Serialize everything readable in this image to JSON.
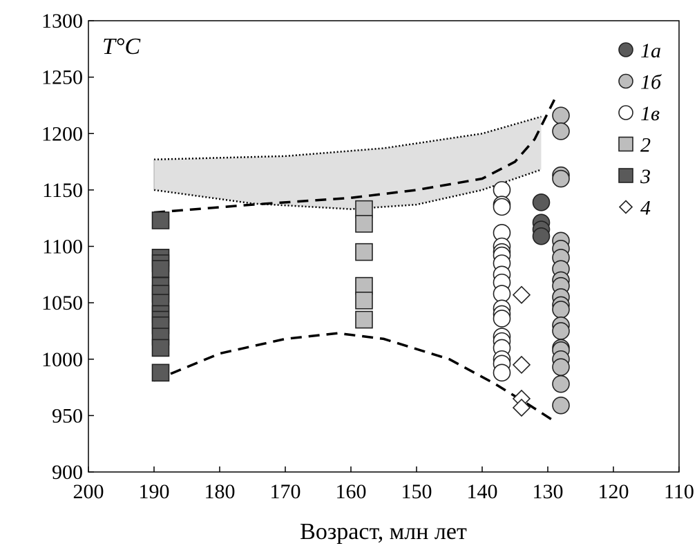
{
  "chart_data": {
    "type": "scatter",
    "title": "T°C",
    "xlabel": "Возраст, млн лет",
    "ylabel": "",
    "xlim": [
      200,
      110
    ],
    "ylim": [
      900,
      1300
    ],
    "xticks": [
      200,
      190,
      180,
      170,
      160,
      150,
      140,
      130,
      120,
      110
    ],
    "yticks": [
      900,
      950,
      1000,
      1050,
      1100,
      1150,
      1200,
      1250,
      1300
    ],
    "grid": false,
    "legend_position": "top-right",
    "series": [
      {
        "name": "1а",
        "marker": "circle",
        "color": "#5a5a5a",
        "x": 131,
        "y": [
          1139,
          1121,
          1115,
          1109
        ]
      },
      {
        "name": "1б",
        "marker": "circle",
        "color": "#bdbdbd",
        "x": 128,
        "y": [
          1216,
          1202,
          1163,
          1160,
          1105,
          1098,
          1090,
          1080,
          1070,
          1065,
          1055,
          1048,
          1044,
          1030,
          1025,
          1010,
          1008,
          1000,
          993,
          978,
          959
        ]
      },
      {
        "name": "1в",
        "marker": "circle",
        "color": "#ffffff",
        "x": 137,
        "y": [
          1150,
          1137,
          1135,
          1112,
          1100,
          1095,
          1092,
          1085,
          1075,
          1068,
          1058,
          1045,
          1040,
          1036,
          1020,
          1016,
          1010,
          1000,
          996,
          988
        ]
      },
      {
        "name": "2",
        "marker": "square",
        "color": "#bdbdbd",
        "x": 158,
        "y": [
          1133,
          1120,
          1095,
          1065,
          1052,
          1035
        ]
      },
      {
        "name": "3",
        "marker": "square",
        "color": "#5a5a5a",
        "x": 189,
        "y": [
          1123,
          1090,
          1085,
          1080,
          1065,
          1058,
          1050,
          1040,
          1035,
          1030,
          1020,
          1010,
          988
        ]
      },
      {
        "name": "4",
        "marker": "diamond",
        "color": "#ffffff",
        "x": 134,
        "y": [
          1057,
          995,
          965,
          957
        ]
      }
    ],
    "curves": {
      "upper_dashed": [
        [
          190,
          1130
        ],
        [
          175,
          1137
        ],
        [
          160,
          1143
        ],
        [
          150,
          1150
        ],
        [
          140,
          1160
        ],
        [
          135,
          1175
        ],
        [
          132,
          1195
        ],
        [
          129,
          1230
        ]
      ],
      "lower_dashed": [
        [
          190,
          981
        ],
        [
          180,
          1005
        ],
        [
          170,
          1018
        ],
        [
          162,
          1023
        ],
        [
          155,
          1018
        ],
        [
          145,
          1000
        ],
        [
          138,
          978
        ],
        [
          133,
          960
        ],
        [
          129,
          945
        ]
      ],
      "band_upper": [
        [
          190,
          1177
        ],
        [
          170,
          1180
        ],
        [
          155,
          1187
        ],
        [
          140,
          1200
        ],
        [
          131,
          1215
        ]
      ],
      "band_lower": [
        [
          190,
          1150
        ],
        [
          175,
          1138
        ],
        [
          160,
          1133
        ],
        [
          150,
          1137
        ],
        [
          140,
          1150
        ],
        [
          131,
          1168
        ]
      ]
    }
  }
}
